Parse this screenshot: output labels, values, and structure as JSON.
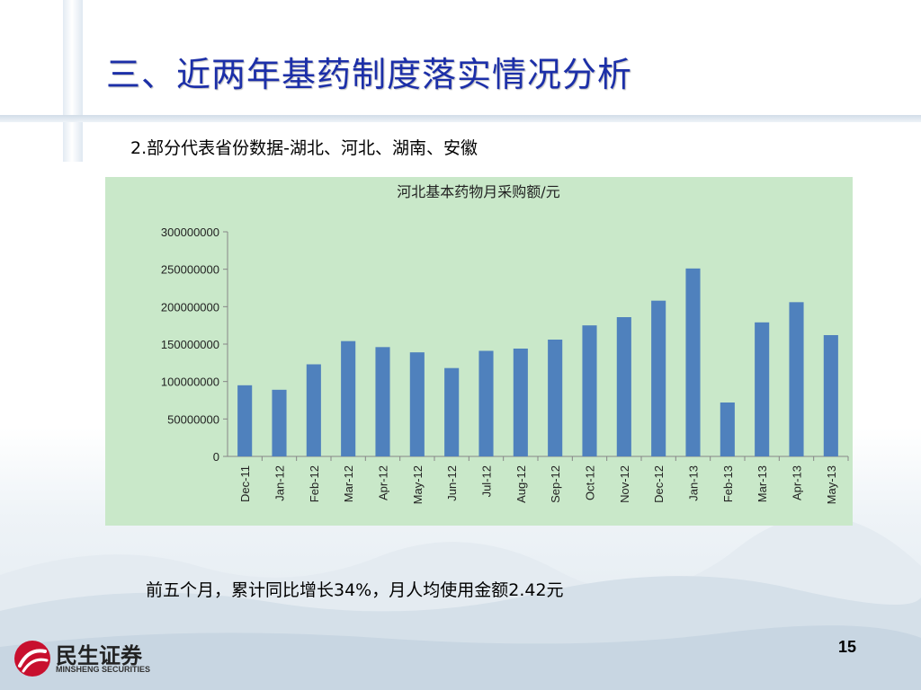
{
  "slide": {
    "title": "三、近两年基药制度落实情况分析",
    "subtitle": "2.部分代表省份数据-湖北、河北、湖南、安徽",
    "note": "前五个月，累计同比增长34%，月人均使用金额2.42元",
    "page_number": "15",
    "logo_name": "民生证券",
    "logo_sub": "MINSHENG SECURITIES"
  },
  "colors": {
    "title": "#1c2fa8",
    "chart_background": "#c9e8c9",
    "bar": "#4f81bd",
    "logo_red": "#c8102e"
  },
  "chart_data": {
    "type": "bar",
    "title": "河北基本药物月采购额/元",
    "categories": [
      "Dec-11",
      "Jan-12",
      "Feb-12",
      "Mar-12",
      "Apr-12",
      "May-12",
      "Jun-12",
      "Jul-12",
      "Aug-12",
      "Sep-12",
      "Oct-12",
      "Nov-12",
      "Dec-12",
      "Jan-13",
      "Feb-13",
      "Mar-13",
      "Apr-13",
      "May-13"
    ],
    "values": [
      95000000,
      89000000,
      123000000,
      154000000,
      146000000,
      139000000,
      118000000,
      141000000,
      144000000,
      156000000,
      175000000,
      186000000,
      208000000,
      251000000,
      72000000,
      179000000,
      206000000,
      162000000
    ],
    "ylim": [
      0,
      300000000
    ],
    "yticks": [
      "0",
      "50000000",
      "100000000",
      "150000000",
      "200000000",
      "250000000",
      "300000000"
    ],
    "grid": false,
    "legend": "none"
  }
}
